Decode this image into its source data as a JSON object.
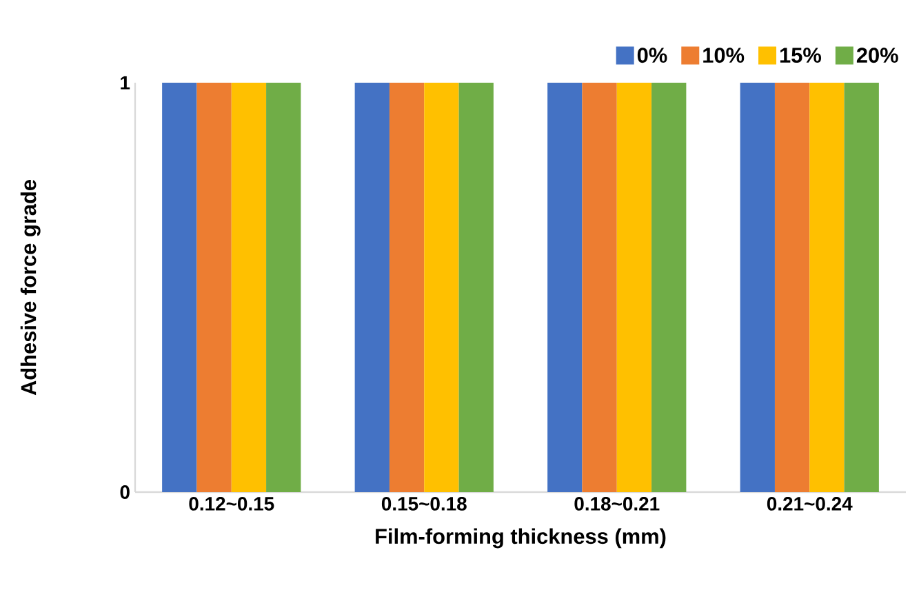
{
  "chart_data": {
    "type": "bar",
    "xlabel": "Film-forming thickness (mm)",
    "ylabel": "Adhesive force grade",
    "categories": [
      "0.12~0.15",
      "0.15~0.18",
      "0.18~0.21",
      "0.21~0.24"
    ],
    "series": [
      {
        "name": "0%",
        "color": "#4472c4",
        "values": [
          1,
          1,
          1,
          1
        ]
      },
      {
        "name": "10%",
        "color": "#ed7d31",
        "values": [
          1,
          1,
          1,
          1
        ]
      },
      {
        "name": "15%",
        "color": "#ffc000",
        "values": [
          1,
          1,
          1,
          1
        ]
      },
      {
        "name": "20%",
        "color": "#70ad47",
        "values": [
          1,
          1,
          1,
          1
        ]
      }
    ],
    "ylim": [
      0,
      1
    ],
    "yticks": [
      0,
      1
    ],
    "grid": false,
    "legend": "top right"
  }
}
